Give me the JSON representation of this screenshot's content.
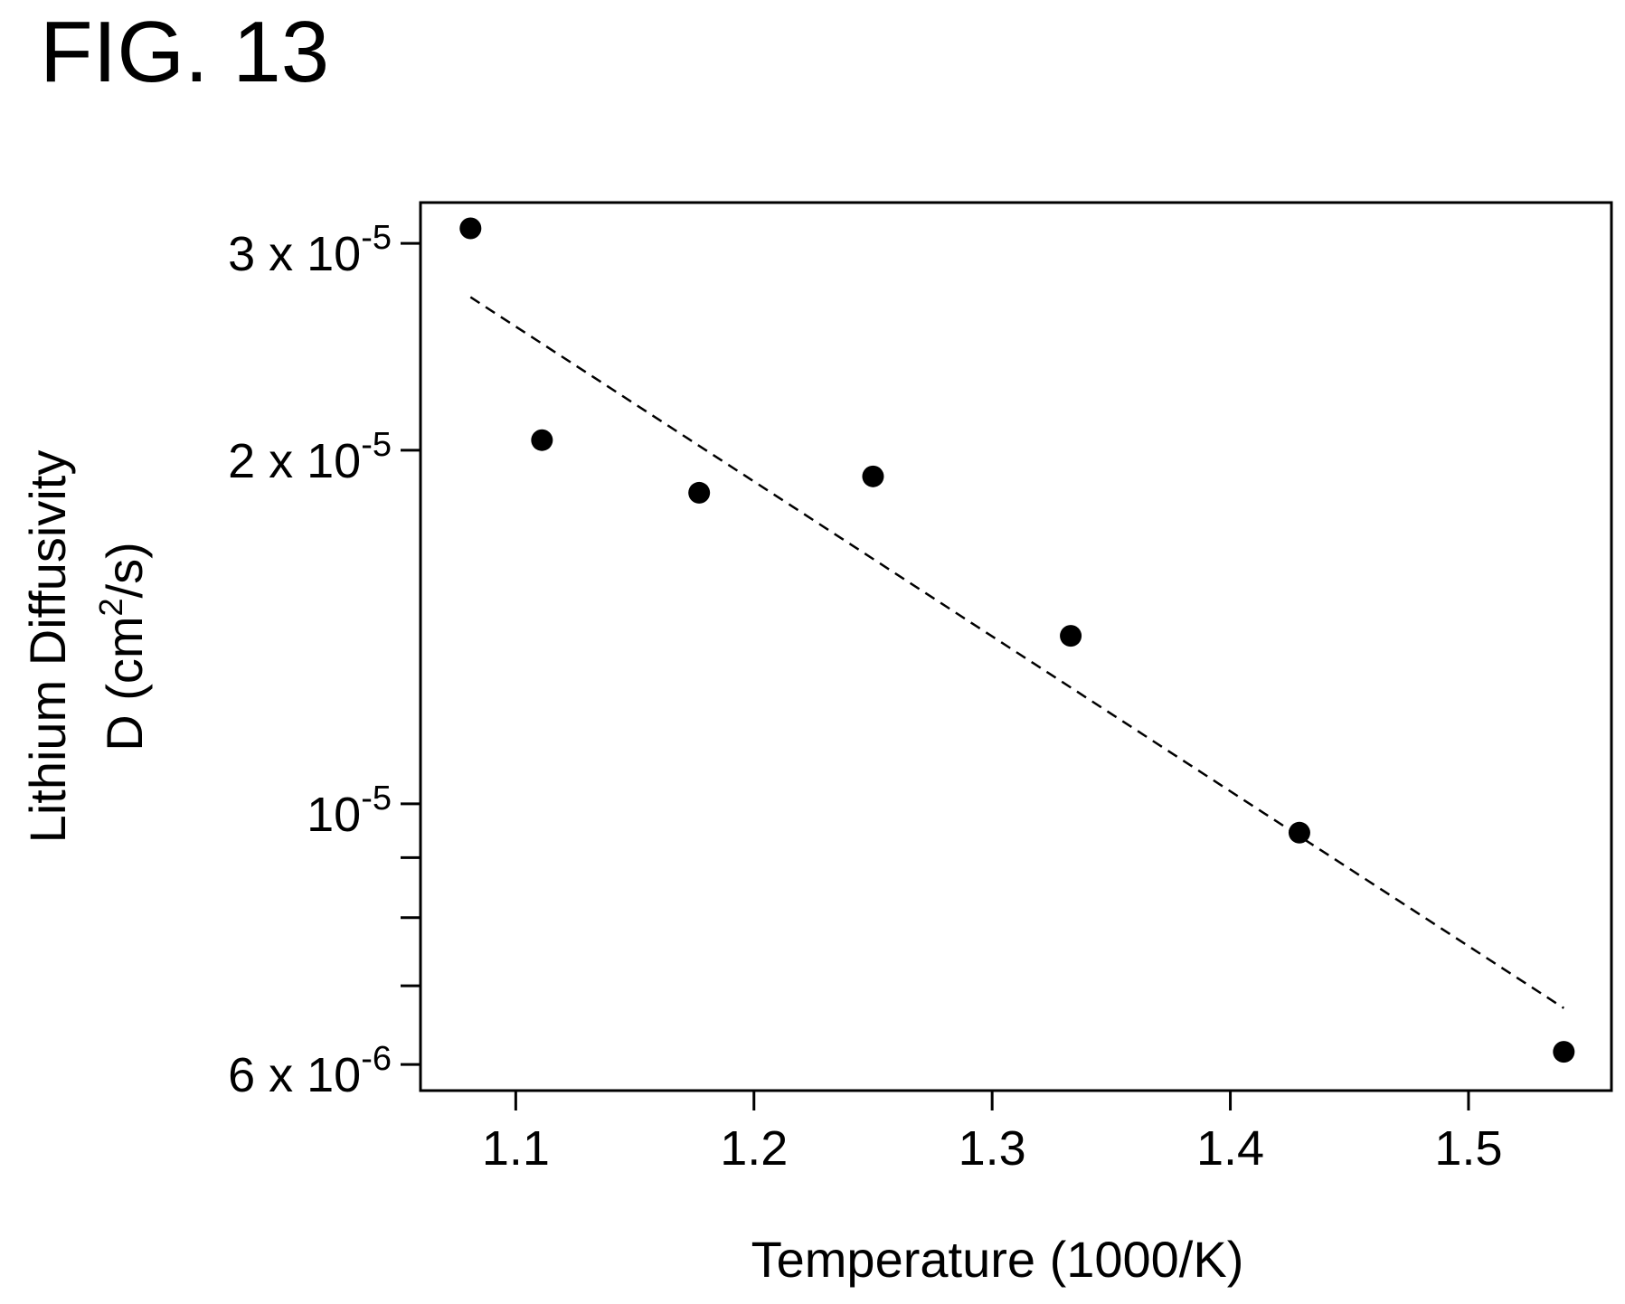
{
  "figure_label": "FIG. 13",
  "chart_data": {
    "type": "scatter",
    "xlabel": "Temperature (1000/K)",
    "ylabel_line1": "Lithium Diffusivity",
    "ylabel_line2_base": "D (cm",
    "ylabel_line2_sup": "2",
    "ylabel_line2_tail": "/s)",
    "xlim": [
      1.06,
      1.56
    ],
    "ylim": [
      5.7e-06,
      3.25e-05
    ],
    "y_scale": "log",
    "x_ticks": [
      {
        "value": 1.1,
        "label": "1.1"
      },
      {
        "value": 1.2,
        "label": "1.2"
      },
      {
        "value": 1.3,
        "label": "1.3"
      },
      {
        "value": 1.4,
        "label": "1.4"
      },
      {
        "value": 1.5,
        "label": "1.5"
      }
    ],
    "y_ticks_labeled": [
      {
        "value": 3e-05,
        "mantissa": "3 x 10",
        "exp": "-5"
      },
      {
        "value": 2e-05,
        "mantissa": "2 x 10",
        "exp": "-5"
      },
      {
        "value": 1e-05,
        "mantissa": "10",
        "exp": "-5"
      },
      {
        "value": 6e-06,
        "mantissa": "6 x 10",
        "exp": "-6"
      }
    ],
    "y_ticks_minor": [
      9e-06,
      8e-06,
      7e-06
    ],
    "series": [
      {
        "marker": "filled-circle",
        "color": "#000000",
        "x": [
          1.081,
          1.111,
          1.177,
          1.25,
          1.333,
          1.429,
          1.54
        ],
        "y": [
          3.09e-05,
          2.04e-05,
          1.84e-05,
          1.9e-05,
          1.39e-05,
          9.45e-06,
          6.15e-06
        ]
      }
    ],
    "fit_line": {
      "style": "dashed",
      "color": "#000000",
      "x": [
        1.081,
        1.54
      ],
      "y": [
        2.7e-05,
        6.7e-06
      ]
    },
    "grid": false,
    "legend": "none"
  }
}
